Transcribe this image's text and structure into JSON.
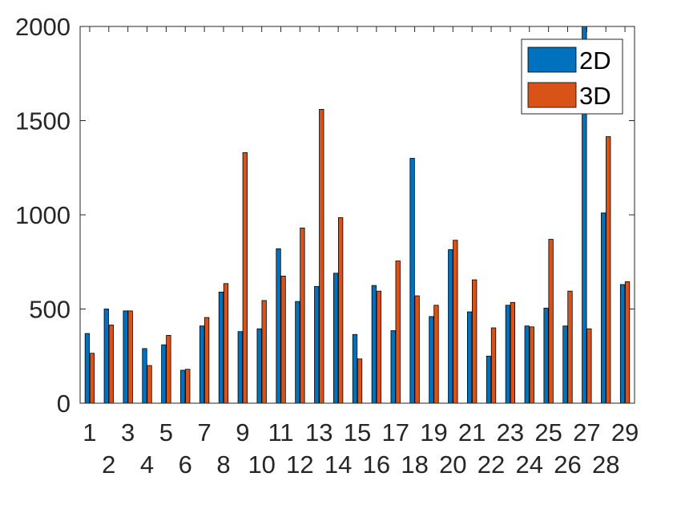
{
  "chart_data": {
    "type": "bar",
    "categories": [
      "1",
      "2",
      "3",
      "4",
      "5",
      "6",
      "7",
      "8",
      "9",
      "10",
      "11",
      "12",
      "13",
      "14",
      "15",
      "16",
      "17",
      "18",
      "19",
      "20",
      "21",
      "22",
      "23",
      "24",
      "25",
      "26",
      "27",
      "28",
      "29"
    ],
    "series": [
      {
        "name": "2D",
        "color": "#0072BD",
        "values": [
          370,
          500,
          490,
          290,
          310,
          175,
          410,
          590,
          380,
          395,
          820,
          540,
          620,
          690,
          365,
          625,
          385,
          1300,
          460,
          815,
          485,
          250,
          520,
          410,
          505,
          410,
          2000,
          1010,
          630
        ]
      },
      {
        "name": "3D",
        "color": "#D95319",
        "values": [
          265,
          415,
          490,
          200,
          360,
          180,
          455,
          635,
          1330,
          545,
          675,
          930,
          1560,
          985,
          235,
          595,
          755,
          570,
          520,
          865,
          655,
          400,
          535,
          405,
          870,
          595,
          395,
          1415,
          645
        ]
      }
    ],
    "yticks": [
      "0",
      "500",
      "1000",
      "1500",
      "2000"
    ],
    "ylim": [
      0,
      2000
    ],
    "legend_position": "top-right",
    "grid": false,
    "title": "",
    "xlabel": "",
    "ylabel": ""
  }
}
